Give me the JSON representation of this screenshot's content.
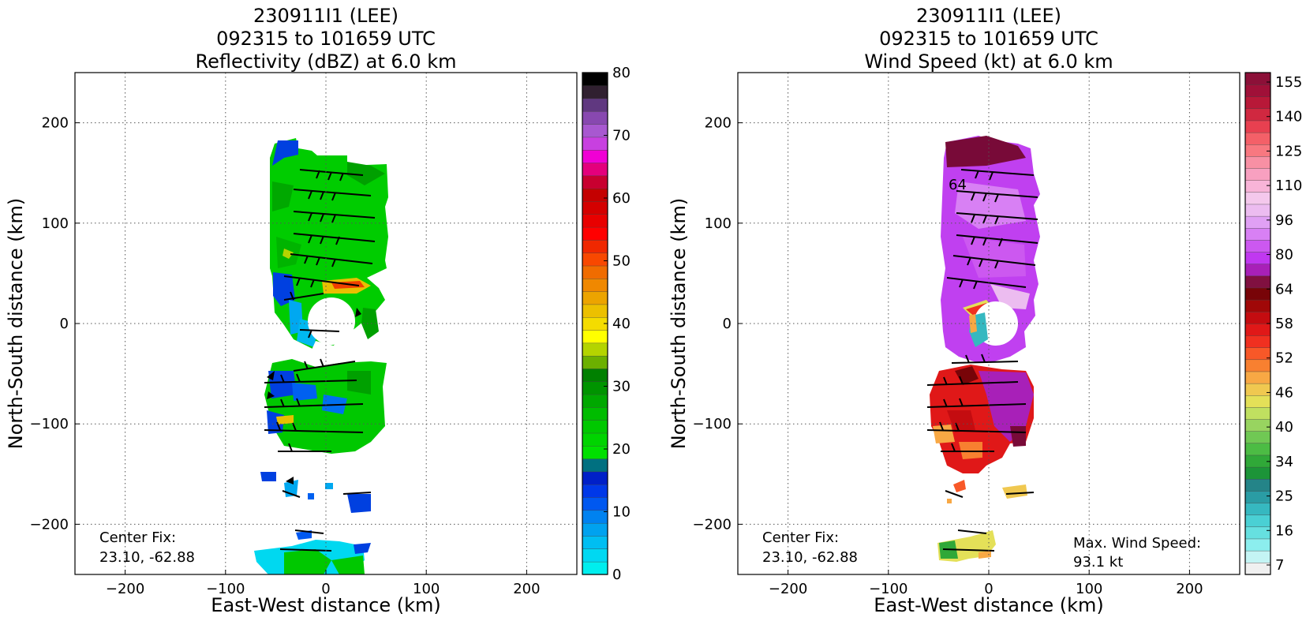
{
  "chart_data": [
    {
      "type": "heatmap",
      "title": "230911I1 (LEE)",
      "subtitle": "092315 to 101659 UTC",
      "field_title": "Reflectivity (dBZ) at 6.0 km",
      "xlabel": "East-West distance (km)",
      "ylabel": "North-South distance (km)",
      "xlim": [
        -250,
        250
      ],
      "ylim": [
        -250,
        250
      ],
      "xticks": [
        -200,
        -100,
        0,
        100,
        200
      ],
      "yticks": [
        200,
        100,
        0,
        -100,
        -200
      ],
      "xtick_labels": [
        "−200",
        "−100",
        "0",
        "100",
        "200"
      ],
      "ytick_labels": [
        "200",
        "100",
        "0",
        "−100",
        "−200"
      ],
      "grid": true,
      "annotations": [
        "Center Fix:",
        "23.10, -62.88"
      ],
      "colorbar": {
        "min": 0,
        "max": 80,
        "tick_values": [
          0,
          10,
          20,
          30,
          40,
          50,
          60,
          70,
          80
        ],
        "tick_labels": [
          "0",
          "10",
          "20",
          "30",
          "40",
          "50",
          "60",
          "70",
          "80"
        ],
        "colors": [
          "#00eeee",
          "#00d8f2",
          "#00bef2",
          "#00a2ef",
          "#0082f0",
          "#0058f0",
          "#0038e8",
          "#0020c8",
          "#007080",
          "#00e000",
          "#00d400",
          "#00c800",
          "#00bc00",
          "#00a800",
          "#009400",
          "#008000",
          "#6cb000",
          "#b4d400",
          "#ffff00",
          "#f4dc00",
          "#ecc000",
          "#eca400",
          "#f08800",
          "#f06c00",
          "#f84800",
          "#f02800",
          "#ff0000",
          "#e80000",
          "#d40000",
          "#c40000",
          "#c80030",
          "#e4007c",
          "#f000d4",
          "#c840e0",
          "#a858d0",
          "#8848b0",
          "#603880",
          "#302030",
          "#000000"
        ]
      }
    },
    {
      "type": "heatmap",
      "title": "230911I1 (LEE)",
      "subtitle": "092315 to 101659 UTC",
      "field_title": "Wind Speed (kt) at 6.0 km",
      "xlabel": "East-West distance (km)",
      "ylabel": "North-South distance (km)",
      "xlim": [
        -250,
        250
      ],
      "ylim": [
        -250,
        250
      ],
      "xticks": [
        -200,
        -100,
        0,
        100,
        200
      ],
      "yticks": [
        200,
        100,
        0,
        -100,
        -200
      ],
      "xtick_labels": [
        "−200",
        "−100",
        "0",
        "100",
        "200"
      ],
      "ytick_labels": [
        "200",
        "100",
        "0",
        "−100",
        "−200"
      ],
      "grid": true,
      "annotations": [
        "Center Fix:",
        "23.10, -62.88",
        "Max. Wind Speed:",
        "93.1 kt"
      ],
      "max_wind_speed_kt": 93.1,
      "contour_label": "64",
      "colorbar": {
        "tick_labels": [
          "7",
          "16",
          "25",
          "34",
          "40",
          "46",
          "52",
          "58",
          "64",
          "80",
          "96",
          "110",
          "125",
          "140",
          "155"
        ],
        "colors": [
          "#f0f0f0",
          "#c4f4f4",
          "#8ceeee",
          "#66e0e0",
          "#4ad0d4",
          "#36b8c0",
          "#2a9ca4",
          "#248488",
          "#1c9438",
          "#30a838",
          "#4cbc44",
          "#70c854",
          "#98d460",
          "#c0e060",
          "#e4e058",
          "#f0c850",
          "#f8a844",
          "#f88030",
          "#f85828",
          "#f03020",
          "#e01818",
          "#c40c10",
          "#a00808",
          "#780408",
          "#801040",
          "#a820b8",
          "#c038f0",
          "#cc58f0",
          "#d880f4",
          "#e0a0f4",
          "#ecbcf0",
          "#f4c8ec",
          "#f8b4d8",
          "#f8a0c0",
          "#f890a4",
          "#f87880",
          "#f46068",
          "#e84050",
          "#d02840",
          "#b81838",
          "#a01038",
          "#8c1038"
        ]
      }
    }
  ]
}
